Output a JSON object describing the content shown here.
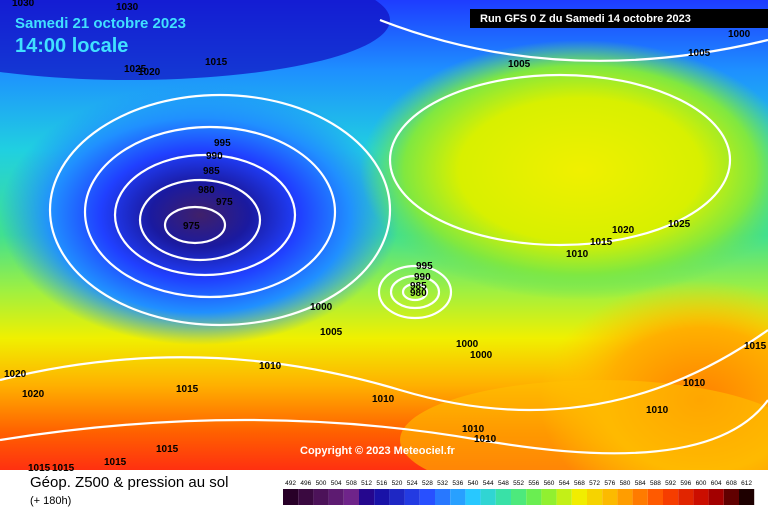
{
  "header": {
    "date": "Samedi 21 octobre 2023",
    "time": "14:00 locale",
    "run": "Run GFS 0 Z du Samedi 14 octobre 2023"
  },
  "copyright": "Copyright © 2023 Meteociel.fr",
  "footer": {
    "title": "Géop. Z500 & pression au sol",
    "lead": "(+ 180h)"
  },
  "scale": [
    492,
    496,
    500,
    504,
    508,
    512,
    516,
    520,
    524,
    528,
    532,
    536,
    540,
    544,
    548,
    552,
    556,
    560,
    564,
    568,
    572,
    576,
    580,
    584,
    588,
    592,
    596,
    600,
    604,
    608,
    612
  ],
  "isobar_labels": [
    1030,
    1030,
    1025,
    1020,
    1015,
    1005,
    1005,
    1000,
    995,
    990,
    985,
    980,
    975,
    975,
    995,
    990,
    985,
    980,
    1000,
    1005,
    1010,
    1015,
    1020,
    1020,
    1000,
    1000,
    1010,
    1010,
    1010,
    1010,
    1010,
    1015,
    1015,
    1010,
    1020,
    1025,
    1015,
    1015,
    1015,
    1015
  ]
}
